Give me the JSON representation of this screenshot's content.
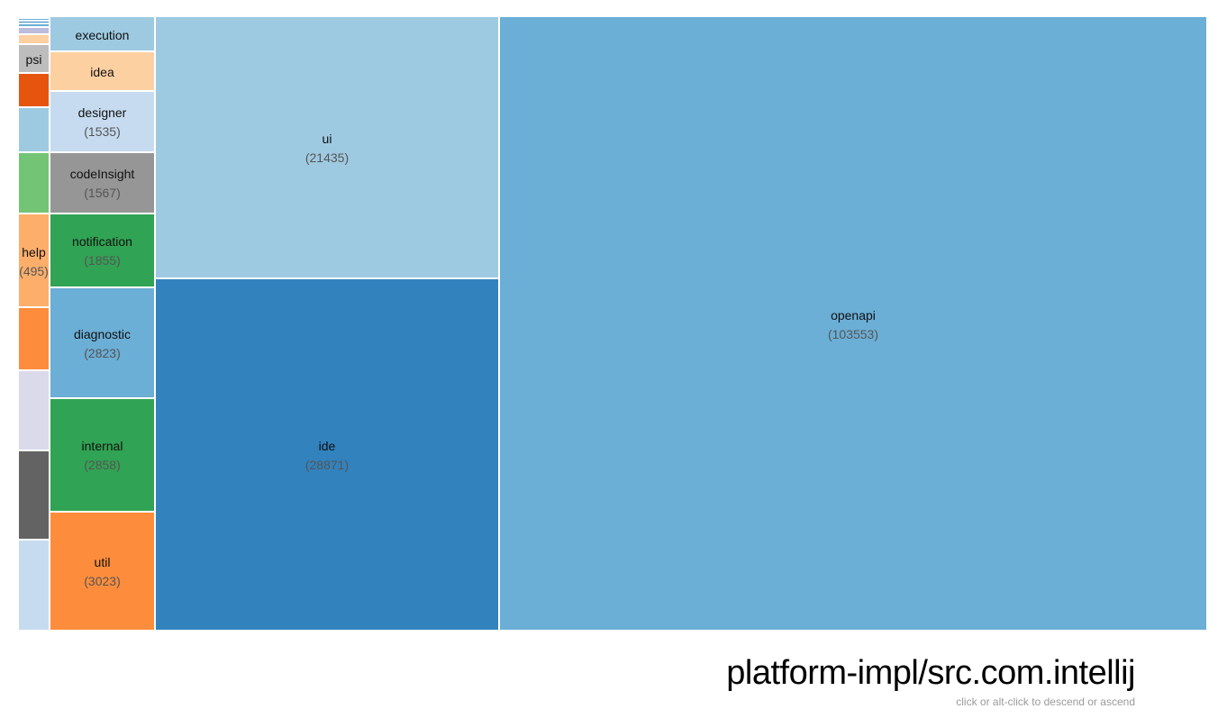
{
  "title": "platform-impl/src.com.intellij",
  "subtitle": "click or alt-click to descend or ascend",
  "chart_data": {
    "type": "treemap",
    "items": [
      {
        "name": "openapi",
        "value": 103553,
        "color": "#6baed6",
        "show_name": true,
        "show_value": true
      },
      {
        "name": "ide",
        "value": 28871,
        "color": "#3182bd",
        "show_name": true,
        "show_value": true
      },
      {
        "name": "ui",
        "value": 21435,
        "color": "#9ecae1",
        "show_name": true,
        "show_value": true
      },
      {
        "name": "util",
        "value": 3023,
        "color": "#fd8d3c",
        "show_name": true,
        "show_value": true
      },
      {
        "name": "internal",
        "value": 2858,
        "color": "#31a354",
        "show_name": true,
        "show_value": true
      },
      {
        "name": "diagnostic",
        "value": 2823,
        "color": "#6baed6",
        "show_name": true,
        "show_value": true
      },
      {
        "name": "notification",
        "value": 1855,
        "color": "#31a354",
        "show_name": true,
        "show_value": true
      },
      {
        "name": "codeInsight",
        "value": 1567,
        "color": "#969696",
        "show_name": true,
        "show_value": true
      },
      {
        "name": "designer",
        "value": 1535,
        "color": "#c6dbef",
        "show_name": true,
        "show_value": true
      },
      {
        "name": "idea",
        "value": 1000,
        "color": "#fdd0a2",
        "show_name": true,
        "show_value": false
      },
      {
        "name": "execution",
        "value": 900,
        "color": "#9ecae1",
        "show_name": true,
        "show_value": false
      },
      {
        "name": "",
        "value": 480,
        "color": "#c6dbef",
        "show_name": false,
        "show_value": false
      },
      {
        "name": "",
        "value": 470,
        "color": "#636363",
        "show_name": false,
        "show_value": false
      },
      {
        "name": "",
        "value": 420,
        "color": "#dadaeb",
        "show_name": false,
        "show_value": false
      },
      {
        "name": "",
        "value": 330,
        "color": "#fd8d3c",
        "show_name": false,
        "show_value": false
      },
      {
        "name": "help",
        "value": 495,
        "color": "#fdae6b",
        "show_name": true,
        "show_value": true
      },
      {
        "name": "",
        "value": 320,
        "color": "#74c476",
        "show_name": false,
        "show_value": false
      },
      {
        "name": "",
        "value": 240,
        "color": "#9ecae1",
        "show_name": false,
        "show_value": false
      },
      {
        "name": "",
        "value": 180,
        "color": "#e6550d",
        "show_name": false,
        "show_value": false
      },
      {
        "name": "psi",
        "value": 150,
        "color": "#bdbdbd",
        "show_name": true,
        "show_value": false
      },
      {
        "name": "",
        "value": 50,
        "color": "#fdd0a2",
        "show_name": false,
        "show_value": false
      },
      {
        "name": "",
        "value": 40,
        "color": "#bcbddc",
        "show_name": false,
        "show_value": false
      },
      {
        "name": "",
        "value": 20,
        "color": "#6baed6",
        "show_name": false,
        "show_value": false
      },
      {
        "name": "",
        "value": 15,
        "color": "#3182bd",
        "show_name": false,
        "show_value": false
      },
      {
        "name": "",
        "value": 12,
        "color": "#6baed6",
        "show_name": false,
        "show_value": false
      },
      {
        "name": "",
        "value": 10,
        "color": "#3182bd",
        "show_name": false,
        "show_value": false
      }
    ]
  }
}
